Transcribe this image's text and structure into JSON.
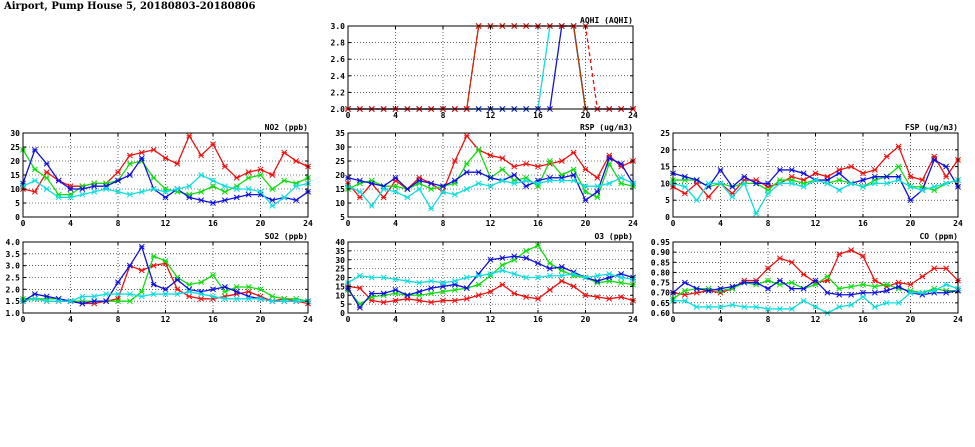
{
  "page": {
    "title": "Airport, Pump House 5, 20180803-20180806"
  },
  "colors": {
    "red": "#ee1111",
    "green": "#11dd11",
    "blue": "#1111dd",
    "cyan": "#11dddd",
    "brown": "#aa4400"
  },
  "chart_data": [
    {
      "id": "aqhi",
      "type": "line",
      "title": "AQHI (AQHI)",
      "xlim": [
        0,
        24
      ],
      "xticks": [
        0,
        4,
        8,
        12,
        16,
        20,
        24
      ],
      "ylim": [
        2.0,
        3.0
      ],
      "yticks": [
        "2.0",
        "2.2",
        "2.4",
        "2.6",
        "2.8",
        "3.0"
      ],
      "grid": true,
      "series": [
        {
          "color": "cyan",
          "values": [
            2,
            2,
            2,
            2,
            2,
            2,
            2,
            2,
            2,
            2,
            2,
            2,
            2,
            2,
            2,
            2,
            2,
            3,
            3,
            3,
            2,
            2,
            2,
            2,
            2
          ]
        },
        {
          "color": "blue",
          "values": [
            2,
            2,
            2,
            2,
            2,
            2,
            2,
            2,
            2,
            2,
            2,
            2,
            2,
            2,
            2,
            2,
            2,
            2,
            3,
            3,
            2,
            2,
            2,
            2,
            2
          ]
        },
        {
          "color": "brown",
          "values": [
            2,
            2,
            2,
            2,
            2,
            2,
            2,
            2,
            2,
            2,
            2,
            3,
            3,
            3,
            3,
            3,
            3,
            3,
            3,
            3,
            2,
            2,
            2,
            2,
            2
          ]
        },
        {
          "color": "red",
          "dashed": true,
          "values": [
            2,
            2,
            2,
            2,
            2,
            2,
            2,
            2,
            2,
            2,
            2,
            3,
            3,
            3,
            3,
            3,
            3,
            3,
            3,
            3,
            3,
            2,
            2,
            2,
            2
          ]
        }
      ]
    },
    {
      "id": "no2",
      "type": "line",
      "title": "NO2 (ppb)",
      "xlim": [
        0,
        24
      ],
      "xticks": [
        0,
        4,
        8,
        12,
        16,
        20,
        24
      ],
      "ylim": [
        0,
        30
      ],
      "yticks": [
        "0",
        "5",
        "10",
        "15",
        "20",
        "25",
        "30"
      ],
      "grid": true,
      "series": [
        {
          "color": "red",
          "values": [
            10,
            9,
            16,
            13,
            11,
            11,
            12,
            12,
            16,
            22,
            23,
            24,
            21,
            19,
            29,
            22,
            26,
            18,
            14,
            16,
            17,
            15,
            23,
            20,
            18
          ]
        },
        {
          "color": "green",
          "values": [
            24,
            17,
            14,
            8,
            8,
            11,
            12,
            12,
            13,
            19,
            20,
            14,
            10,
            9,
            8,
            9,
            11,
            9,
            11,
            14,
            15,
            10,
            13,
            12,
            14
          ]
        },
        {
          "color": "blue",
          "values": [
            12,
            24,
            19,
            13,
            10,
            10,
            11,
            11,
            13,
            15,
            21,
            10,
            7,
            10,
            7,
            6,
            5,
            6,
            7,
            8,
            8,
            6,
            7,
            6,
            9
          ]
        },
        {
          "color": "cyan",
          "values": [
            11,
            13,
            10,
            7,
            7,
            8,
            9,
            10,
            9,
            8,
            9,
            10,
            9,
            10,
            11,
            15,
            13,
            11,
            10,
            10,
            9,
            4,
            7,
            11,
            12
          ]
        }
      ]
    },
    {
      "id": "rsp",
      "type": "line",
      "title": "RSP (ug/m3)",
      "xlim": [
        0,
        24
      ],
      "xticks": [
        0,
        4,
        8,
        12,
        16,
        20,
        24
      ],
      "ylim": [
        5,
        35
      ],
      "yticks": [
        "5",
        "10",
        "15",
        "20",
        "25",
        "30",
        "35"
      ],
      "grid": true,
      "series": [
        {
          "color": "red",
          "values": [
            17,
            12,
            17,
            12,
            18,
            15,
            19,
            17,
            14,
            25,
            34,
            29,
            27,
            26,
            23,
            24,
            23,
            24,
            25,
            28,
            22,
            19,
            27,
            23,
            25
          ]
        },
        {
          "color": "green",
          "values": [
            15,
            17,
            18,
            16,
            16,
            15,
            17,
            15,
            16,
            17,
            24,
            29,
            19,
            22,
            18,
            19,
            16,
            25,
            20,
            22,
            14,
            12,
            24,
            17,
            16
          ]
        },
        {
          "color": "blue",
          "values": [
            19,
            18,
            17,
            16,
            19,
            15,
            18,
            17,
            16,
            18,
            21,
            21,
            19,
            18,
            20,
            16,
            18,
            19,
            19,
            20,
            11,
            14,
            26,
            24,
            17
          ]
        },
        {
          "color": "cyan",
          "values": [
            16,
            14,
            9,
            15,
            14,
            12,
            15,
            8,
            14,
            13,
            15,
            17,
            16,
            18,
            17,
            18,
            17,
            18,
            18,
            18,
            16,
            16,
            17,
            19,
            17
          ]
        }
      ]
    },
    {
      "id": "fsp",
      "type": "line",
      "title": "FSP (ug/m3)",
      "xlim": [
        0,
        24
      ],
      "xticks": [
        0,
        4,
        8,
        12,
        16,
        20,
        24
      ],
      "ylim": [
        0,
        25
      ],
      "yticks": [
        "0",
        "5",
        "10",
        "15",
        "20",
        "25"
      ],
      "grid": true,
      "series": [
        {
          "color": "red",
          "values": [
            9,
            7,
            10,
            6,
            10,
            7,
            11,
            11,
            9,
            10,
            12,
            11,
            13,
            12,
            14,
            15,
            13,
            14,
            18,
            21,
            12,
            11,
            18,
            12,
            17
          ]
        },
        {
          "color": "green",
          "values": [
            11,
            11,
            11,
            9,
            10,
            9,
            10,
            10,
            8,
            11,
            11,
            10,
            11,
            10,
            11,
            10,
            9,
            11,
            12,
            15,
            9,
            9,
            8,
            10,
            11
          ]
        },
        {
          "color": "blue",
          "values": [
            13,
            12,
            11,
            9,
            14,
            9,
            12,
            10,
            10,
            14,
            14,
            13,
            11,
            11,
            13,
            10,
            11,
            12,
            12,
            12,
            5,
            8,
            17,
            15,
            9
          ]
        },
        {
          "color": "cyan",
          "values": [
            10,
            9,
            5,
            10,
            10,
            6,
            10,
            1,
            7,
            10,
            10,
            9,
            11,
            10,
            8,
            10,
            9,
            10,
            10,
            11,
            9,
            8,
            9,
            10,
            11
          ]
        }
      ]
    },
    {
      "id": "so2",
      "type": "line",
      "title": "SO2 (ppb)",
      "xlim": [
        0,
        24
      ],
      "xticks": [
        0,
        4,
        8,
        12,
        16,
        20,
        24
      ],
      "ylim": [
        1.0,
        4.0
      ],
      "yticks": [
        "1.0",
        "1.5",
        "2.0",
        "2.5",
        "3.0",
        "3.5",
        "4.0"
      ],
      "grid": true,
      "series": [
        {
          "color": "red",
          "values": [
            1.5,
            1.6,
            1.5,
            1.5,
            1.5,
            1.4,
            1.4,
            1.5,
            1.6,
            3.0,
            2.8,
            3.0,
            3.1,
            2.0,
            1.7,
            1.6,
            1.6,
            1.7,
            1.8,
            1.9,
            1.7,
            1.5,
            1.6,
            1.5,
            1.4
          ]
        },
        {
          "color": "green",
          "values": [
            1.6,
            1.6,
            1.6,
            1.6,
            1.5,
            1.5,
            1.5,
            1.5,
            1.5,
            1.5,
            1.9,
            3.4,
            3.2,
            2.5,
            2.2,
            2.3,
            2.6,
            1.9,
            2.1,
            2.1,
            2.0,
            1.7,
            1.6,
            1.6,
            1.5
          ]
        },
        {
          "color": "blue",
          "values": [
            1.5,
            1.8,
            1.7,
            1.6,
            1.5,
            1.4,
            1.5,
            1.5,
            2.3,
            3.0,
            3.8,
            2.2,
            2.0,
            2.4,
            2.0,
            1.9,
            2.0,
            2.1,
            1.9,
            1.7,
            1.6,
            1.5,
            1.5,
            1.5,
            1.5
          ]
        },
        {
          "color": "cyan",
          "values": [
            1.5,
            1.6,
            1.5,
            1.5,
            1.5,
            1.7,
            1.7,
            1.8,
            1.8,
            1.8,
            1.7,
            1.8,
            1.8,
            1.8,
            1.9,
            1.8,
            1.7,
            1.6,
            1.6,
            1.6,
            1.6,
            1.5,
            1.5,
            1.5,
            1.5
          ]
        }
      ]
    },
    {
      "id": "o3",
      "type": "line",
      "title": "O3 (ppb)",
      "xlim": [
        0,
        24
      ],
      "xticks": [
        0,
        4,
        8,
        12,
        16,
        20,
        24
      ],
      "ylim": [
        0,
        40
      ],
      "yticks": [
        "0",
        "5",
        "10",
        "15",
        "20",
        "25",
        "30",
        "35",
        "40"
      ],
      "grid": true,
      "series": [
        {
          "color": "red",
          "values": [
            15,
            14,
            7,
            6,
            7,
            8,
            7,
            6,
            7,
            7,
            8,
            10,
            12,
            16,
            11,
            9,
            8,
            13,
            18,
            15,
            10,
            9,
            8,
            9,
            7
          ]
        },
        {
          "color": "green",
          "values": [
            13,
            5,
            9,
            10,
            11,
            10,
            10,
            11,
            12,
            13,
            14,
            16,
            21,
            27,
            30,
            35,
            38,
            28,
            24,
            21,
            20,
            17,
            18,
            17,
            16
          ]
        },
        {
          "color": "blue",
          "values": [
            14,
            3,
            11,
            11,
            13,
            10,
            12,
            14,
            15,
            16,
            14,
            22,
            30,
            31,
            32,
            31,
            28,
            25,
            26,
            23,
            20,
            18,
            20,
            22,
            20
          ]
        },
        {
          "color": "cyan",
          "values": [
            17,
            21,
            20,
            20,
            19,
            18,
            17,
            18,
            17,
            18,
            20,
            21,
            22,
            24,
            22,
            20,
            20,
            21,
            21,
            22,
            20,
            21,
            22,
            20,
            19
          ]
        }
      ]
    },
    {
      "id": "co",
      "type": "line",
      "title": "CO (ppm)",
      "xlim": [
        0,
        24
      ],
      "xticks": [
        0,
        4,
        8,
        12,
        16,
        20,
        24
      ],
      "ylim": [
        0.6,
        0.95
      ],
      "yticks": [
        "0.60",
        "0.65",
        "0.70",
        "0.75",
        "0.80",
        "0.85",
        "0.90",
        "0.95"
      ],
      "grid": true,
      "series": [
        {
          "color": "red",
          "values": [
            0.7,
            0.69,
            0.7,
            0.71,
            0.7,
            0.72,
            0.76,
            0.76,
            0.82,
            0.87,
            0.85,
            0.79,
            0.75,
            0.76,
            0.89,
            0.91,
            0.88,
            0.76,
            0.73,
            0.75,
            0.74,
            0.78,
            0.82,
            0.82,
            0.76
          ]
        },
        {
          "color": "green",
          "values": [
            0.67,
            0.71,
            0.72,
            0.72,
            0.71,
            0.72,
            0.75,
            0.74,
            0.76,
            0.74,
            0.75,
            0.72,
            0.74,
            0.78,
            0.72,
            0.73,
            0.74,
            0.73,
            0.74,
            0.72,
            0.71,
            0.7,
            0.72,
            0.71,
            0.71
          ]
        },
        {
          "color": "blue",
          "values": [
            0.7,
            0.75,
            0.72,
            0.71,
            0.72,
            0.73,
            0.75,
            0.75,
            0.72,
            0.76,
            0.72,
            0.72,
            0.76,
            0.7,
            0.69,
            0.69,
            0.7,
            0.7,
            0.71,
            0.73,
            0.7,
            0.69,
            0.7,
            0.7,
            0.71
          ]
        },
        {
          "color": "cyan",
          "values": [
            0.66,
            0.66,
            0.63,
            0.63,
            0.63,
            0.64,
            0.63,
            0.63,
            0.62,
            0.62,
            0.62,
            0.66,
            0.63,
            0.6,
            0.63,
            0.64,
            0.68,
            0.63,
            0.65,
            0.65,
            0.7,
            0.7,
            0.71,
            0.74,
            0.72
          ]
        }
      ]
    }
  ]
}
